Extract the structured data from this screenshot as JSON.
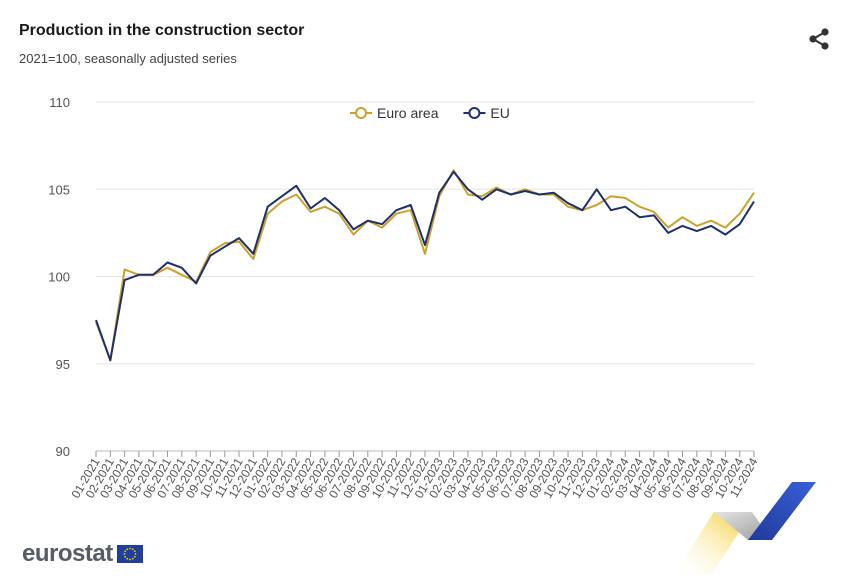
{
  "header": {
    "title": "Production in the construction sector",
    "subtitle": "2021=100, seasonally adjusted series"
  },
  "share": {
    "icon": "share-icon"
  },
  "logo": {
    "text": "eurostat",
    "flag_icon": "eu-flag-icon"
  },
  "chart_data": {
    "type": "line",
    "ylim": [
      90,
      110
    ],
    "yticks": [
      90,
      95,
      100,
      105,
      110
    ],
    "grid": true,
    "legend": "top-center",
    "categories": [
      "01-2021",
      "02-2021",
      "03-2021",
      "04-2021",
      "05-2021",
      "06-2021",
      "07-2021",
      "08-2021",
      "09-2021",
      "10-2021",
      "11-2021",
      "12-2021",
      "01-2022",
      "02-2022",
      "03-2022",
      "04-2022",
      "05-2022",
      "06-2022",
      "07-2022",
      "08-2022",
      "09-2022",
      "10-2022",
      "11-2022",
      "12-2022",
      "01-2023",
      "02-2023",
      "03-2023",
      "04-2023",
      "05-2023",
      "06-2023",
      "07-2023",
      "08-2023",
      "09-2023",
      "10-2023",
      "11-2023",
      "12-2023",
      "01-2024",
      "02-2024",
      "03-2024",
      "04-2024",
      "05-2024",
      "06-2024",
      "07-2024",
      "08-2024",
      "09-2024",
      "10-2024",
      "11-2024"
    ],
    "series": [
      {
        "name": "Euro area",
        "color": "#c9a227",
        "values": [
          97.4,
          95.2,
          100.4,
          100.1,
          100.1,
          100.5,
          100.1,
          99.7,
          101.4,
          101.9,
          102.0,
          101.0,
          103.6,
          104.3,
          104.7,
          103.7,
          104.0,
          103.6,
          102.4,
          103.2,
          102.8,
          103.6,
          103.8,
          101.3,
          104.6,
          106.1,
          104.7,
          104.6,
          105.1,
          104.7,
          105.0,
          104.7,
          104.7,
          104.0,
          103.8,
          104.1,
          104.6,
          104.5,
          104.0,
          103.7,
          102.8,
          103.4,
          102.9,
          103.2,
          102.8,
          103.6,
          104.8
        ]
      },
      {
        "name": "EU",
        "color": "#1d2f6f",
        "values": [
          97.5,
          95.2,
          99.8,
          100.1,
          100.1,
          100.8,
          100.5,
          99.6,
          101.2,
          101.7,
          102.2,
          101.3,
          104.0,
          104.6,
          105.2,
          103.9,
          104.5,
          103.8,
          102.7,
          103.2,
          103.0,
          103.8,
          104.1,
          101.8,
          104.8,
          106.0,
          105.0,
          104.4,
          105.0,
          104.7,
          104.9,
          104.7,
          104.8,
          104.2,
          103.8,
          105.0,
          103.8,
          104.0,
          103.4,
          103.5,
          102.5,
          102.9,
          102.6,
          102.9,
          102.4,
          103.0,
          104.3
        ]
      }
    ]
  }
}
